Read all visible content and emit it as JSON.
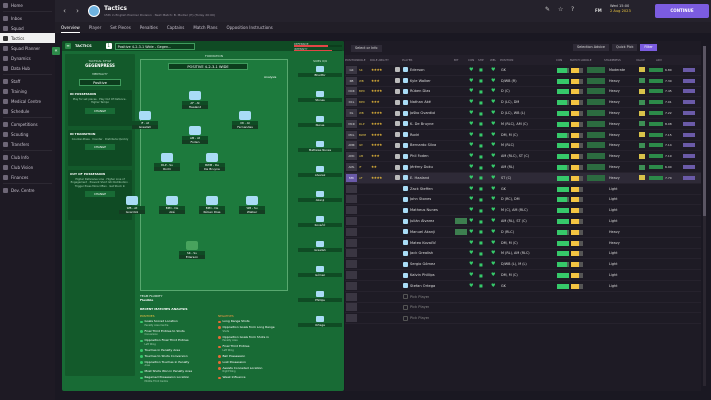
{
  "sidebar": {
    "items": [
      "Home",
      "Inbox",
      "Squad",
      "Tactics",
      "Squad Planner",
      "Dynamics",
      "Data Hub",
      "Staff",
      "Training",
      "Medical Centre",
      "Schedule",
      "Competitions",
      "Scouting",
      "Transfers",
      "Club Info",
      "Club Vision",
      "Finances",
      "Dev. Centre"
    ],
    "active": 3
  },
  "header": {
    "title": "Tactics",
    "subtitle": "15th in English Premier Division · Next Match: B. Mudler (H) (Today 20:00)",
    "fm": "FM",
    "date_line1": "Wed 15:00",
    "date_line2": "2 Aug 2023",
    "continue": "CONTINUE"
  },
  "tabs": [
    "Overview",
    "Player",
    "Set Pieces",
    "Penalties",
    "Captains",
    "Match Plans",
    "Opposition Instructions"
  ],
  "tactic": {
    "label": "TACTICS",
    "number": "1",
    "name": "Positive 4-2-3-1 Wide - Gegen...",
    "bar1": "DEFENSIVE",
    "bar2": "INTENSITY",
    "style_label": "TACTICAL STYLE",
    "style": "GEGENPRESS",
    "mentality_label": "MENTALITY",
    "mentality": "Positive",
    "box1_title": "IN POSSESSION",
    "box1_desc": "Play for set pieces · Play Out Of Defence · Higher Tempo",
    "box2_title": "IN TRANSITION",
    "box2_desc": "Counter-Press · Counter · Distribute Quickly",
    "box3_title": "OUT OF POSSESSION",
    "box3_desc": "Higher Defensive Line · Higher Line of Engagement · Prevent Short GK Distribution · Trigger Press More Often · Get Stuck In",
    "change": "CHANGE",
    "formation_label": "FORMATION",
    "formation": "POSITIVE 4-2-3-1 WIDE",
    "analysis": "Analysis",
    "subs_label": "SUBS",
    "subs_count": "0/9",
    "team_fluidity_label": "TEAM FLUIDITY",
    "team_fluidity": "Flexible",
    "players": [
      {
        "pos": "AF - At",
        "name": "Haaland"
      },
      {
        "pos": "IF - At",
        "name": "Grealish"
      },
      {
        "pos": "AM - At",
        "name": "Foden"
      },
      {
        "pos": "IW - At",
        "name": "Fernandes"
      },
      {
        "pos": "DLP - Su",
        "name": "Rodri"
      },
      {
        "pos": "BWM - De",
        "name": "De Bruyne"
      },
      {
        "pos": "WB - At",
        "name": "Gvardiol"
      },
      {
        "pos": "BPD - De",
        "name": "Aké"
      },
      {
        "pos": "BPD - De",
        "name": "Rúben Dias"
      },
      {
        "pos": "WB - Su",
        "name": "Walker"
      },
      {
        "pos": "SK - Su",
        "name": "Ederson"
      }
    ],
    "subs": [
      "Bhadfor",
      "Stones",
      "Nunes",
      "Mathews Nunes",
      "Alvarez",
      "Akanji",
      "Kovačić",
      "Grealish",
      "Gómez",
      "Phillips",
      "Ortega"
    ],
    "recent_title": "RECENT MATCHES ANALYSIS",
    "positives_label": "POSITIVES",
    "negatives_label": "NEGATIVES",
    "positives": [
      {
        "t": "Goals Scored Location",
        "s": "Penalty Area Centre"
      },
      {
        "t": "Final Third Entries to Shots",
        "s": "Conversion"
      },
      {
        "t": "Opposition Final Third Entries",
        "s": "Left Wing"
      },
      {
        "t": "Touches in Penalty Area",
        "s": ""
      },
      {
        "t": "Touches to Shots Conversion",
        "s": ""
      },
      {
        "t": "Opposition Touches in Penalty",
        "s": "Area"
      },
      {
        "t": "Most Shots Won in Penalty Area",
        "s": ""
      },
      {
        "t": "Regained Possession Location",
        "s": "Middle Third Centre"
      }
    ],
    "negatives": [
      {
        "t": "Long Range Shots",
        "s": ""
      },
      {
        "t": "Opposition Goals from Long Range",
        "s": "Shots"
      },
      {
        "t": "Opposition Goals from Shots in",
        "s": "Penalty Area"
      },
      {
        "t": "Final Third Entries",
        "s": "Left Wing"
      },
      {
        "t": "Ball Possession",
        "s": ""
      },
      {
        "t": "Lost Possession",
        "s": ""
      },
      {
        "t": "Assists Conceded Location",
        "s": "Right Wing"
      },
      {
        "t": "Weak Influence",
        "s": ""
      }
    ]
  },
  "squad": {
    "select": "Select or Info",
    "advice": "Selection Advice",
    "quick_pick": "Quick Pick",
    "filter": "Filter",
    "headers": [
      "POSITION/DUTY",
      "ROLE",
      "ROLE ABILITY",
      "",
      "PLAYER",
      "BIT",
      "CON",
      "SHP",
      "WEL",
      "POSITION",
      "CON",
      "MATCH LOAD",
      "ROLE",
      "SHARPNESS",
      "VALUE",
      "ADV"
    ],
    "rows": [
      {
        "p": "GK",
        "r": "SK",
        "s": "★★★★",
        "n": "Ederson",
        "pos2": "GK",
        "shp": "Moderate",
        "v": "6.80"
      },
      {
        "p": "RB",
        "r": "WB",
        "s": "★★★",
        "n": "Kyle Walker",
        "pos2": "D/WB (R)",
        "shp": "Heavy",
        "v": "7.30"
      },
      {
        "p": "DCR",
        "r": "BPD",
        "s": "★★★★",
        "n": "Rúben Dias",
        "pos2": "D (C)",
        "shp": "Heavy",
        "v": "7.45"
      },
      {
        "p": "DCL",
        "r": "BPD",
        "s": "★★★",
        "n": "Nathan Aké",
        "pos2": "D (LC), DM",
        "shp": "Heavy",
        "v": "7.01"
      },
      {
        "p": "DL",
        "r": "WB",
        "s": "★★★★",
        "n": "Joško Gvardiol",
        "pos2": "D (LC), WB (L)",
        "shp": "Heavy",
        "v": "7.22"
      },
      {
        "p": "MCR",
        "r": "DLP",
        "s": "★★★★",
        "n": "K. De Bruyne",
        "pos2": "M (RLC), AM (C)",
        "shp": "Heavy",
        "v": "8.08"
      },
      {
        "p": "MCL",
        "r": "BWM",
        "s": "★★★★",
        "n": "Rodri",
        "pos2": "DM, M (C)",
        "shp": "Heavy",
        "v": "7.15"
      },
      {
        "p": "AMR",
        "r": "IW",
        "s": "★★★★",
        "n": "Bernardo Silva",
        "pos2": "M (RLC)",
        "shp": "Heavy",
        "v": "7.14"
      },
      {
        "p": "AMC",
        "r": "AM",
        "s": "★★★",
        "n": "Phil Foden",
        "pos2": "AM (RLC), ST (C)",
        "shp": "Heavy",
        "v": "7.19"
      },
      {
        "p": "AML",
        "r": "IF",
        "s": "★★",
        "n": "Jérémy Doku",
        "pos2": "AM (RL)",
        "shp": "Heavy",
        "v": "6.90"
      },
      {
        "p": "STC",
        "r": "AF",
        "s": "★★★★",
        "n": "E. Haaland",
        "pos2": "ST (C)",
        "shp": "Heavy",
        "v": "7.70"
      },
      {
        "p": "S1",
        "r": "",
        "s": "",
        "n": "Zack Steffen",
        "pos2": "GK",
        "shp": "Light",
        "v": ""
      },
      {
        "p": "S2",
        "r": "",
        "s": "",
        "n": "John Stones",
        "pos2": "D (RC), DM",
        "shp": "Light",
        "v": ""
      },
      {
        "p": "S3",
        "r": "",
        "s": "",
        "n": "Matheus Nunes",
        "pos2": "M (C), AM (RLC)",
        "shp": "Light",
        "v": ""
      },
      {
        "p": "S4",
        "r": "",
        "s": "",
        "n": "Julián Álvarez",
        "pos2": "AM (RL), ST (C)",
        "shp": "Light",
        "v": ""
      },
      {
        "p": "S5",
        "r": "",
        "s": "",
        "n": "Manuel Akanji",
        "pos2": "D (RLC)",
        "shp": "Heavy",
        "v": ""
      },
      {
        "p": "S6",
        "r": "",
        "s": "",
        "n": "Mateo Kovačić",
        "pos2": "DM, M (C)",
        "shp": "Heavy",
        "v": ""
      },
      {
        "p": "S7",
        "r": "",
        "s": "",
        "n": "Jack Grealish",
        "pos2": "M (RL), AM (RLC)",
        "shp": "Light",
        "v": ""
      },
      {
        "p": "S8",
        "r": "",
        "s": "",
        "n": "Sergio Gómez",
        "pos2": "D/WB (L), M (L)",
        "shp": "Light",
        "v": ""
      },
      {
        "p": "S9",
        "r": "",
        "s": "",
        "n": "Kalvin Phillips",
        "pos2": "DM, M (C)",
        "shp": "Light",
        "v": ""
      },
      {
        "p": "S10",
        "r": "",
        "s": "",
        "n": "Stefan Ortega",
        "pos2": "GK",
        "shp": "Light",
        "v": ""
      },
      {
        "p": "S11",
        "r": "",
        "s": "",
        "n": "Pick Player",
        "pos2": "",
        "shp": "",
        "v": ""
      },
      {
        "p": "S12",
        "r": "",
        "s": "",
        "n": "Pick Player",
        "pos2": "",
        "shp": "",
        "v": ""
      },
      {
        "p": "S13",
        "r": "",
        "s": "",
        "n": "Pick Player",
        "pos2": "",
        "shp": "",
        "v": ""
      }
    ]
  }
}
